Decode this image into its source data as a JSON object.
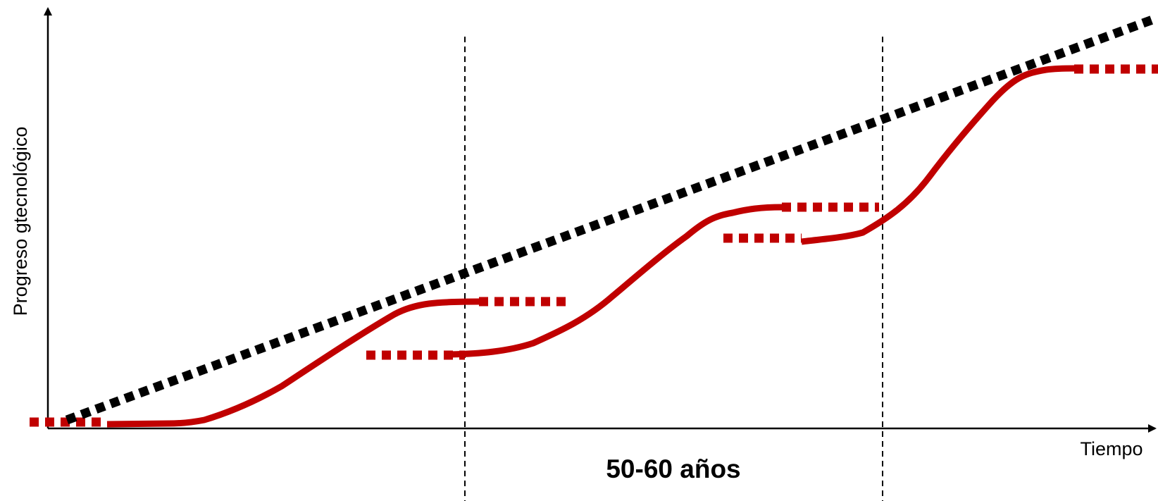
{
  "diagram": {
    "y_axis_label": "Progreso gtecnológico",
    "x_axis_label": "Tiempo",
    "interval_label": "50-60 años"
  },
  "colors": {
    "cycle_curve": "#c00000",
    "trend_line": "#000000",
    "axes": "#000000"
  }
}
